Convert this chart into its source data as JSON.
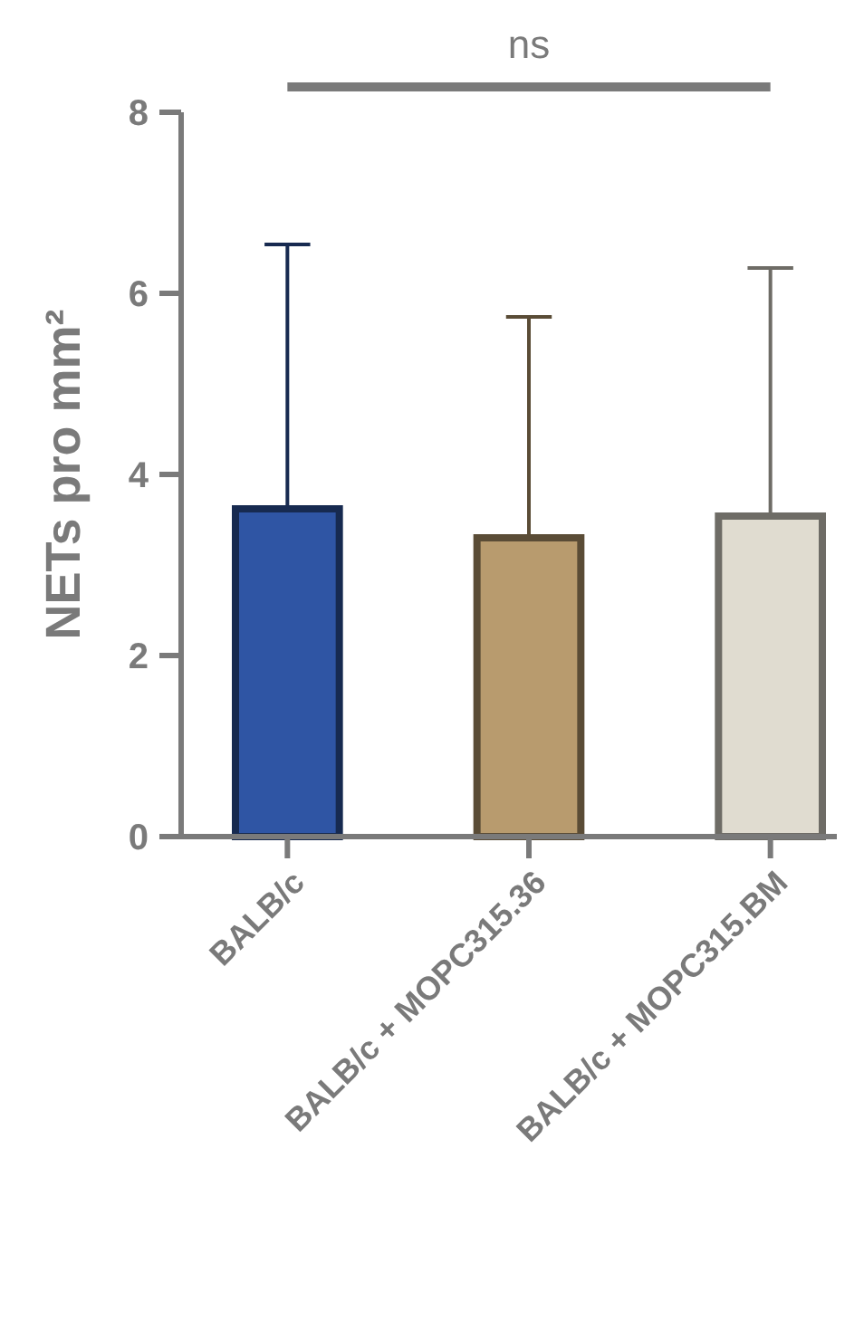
{
  "chart_data": {
    "type": "bar",
    "ylabel": "NETs pro mm²",
    "categories": [
      "BALB/c",
      "BALB/c + MOPC315.36",
      "BALB/c + MOPC315.BM"
    ],
    "values": [
      3.62,
      3.3,
      3.54
    ],
    "errors": [
      [
        3.62,
        6.54
      ],
      [
        3.3,
        5.74
      ],
      [
        3.54,
        6.28
      ]
    ],
    "colors": [
      "#2f55a4",
      "#b89b6e",
      "#e0dcd0"
    ],
    "ylim": [
      0,
      8
    ],
    "yticks": [
      0,
      2,
      4,
      6,
      8
    ],
    "annotations": [
      "ns"
    ]
  }
}
